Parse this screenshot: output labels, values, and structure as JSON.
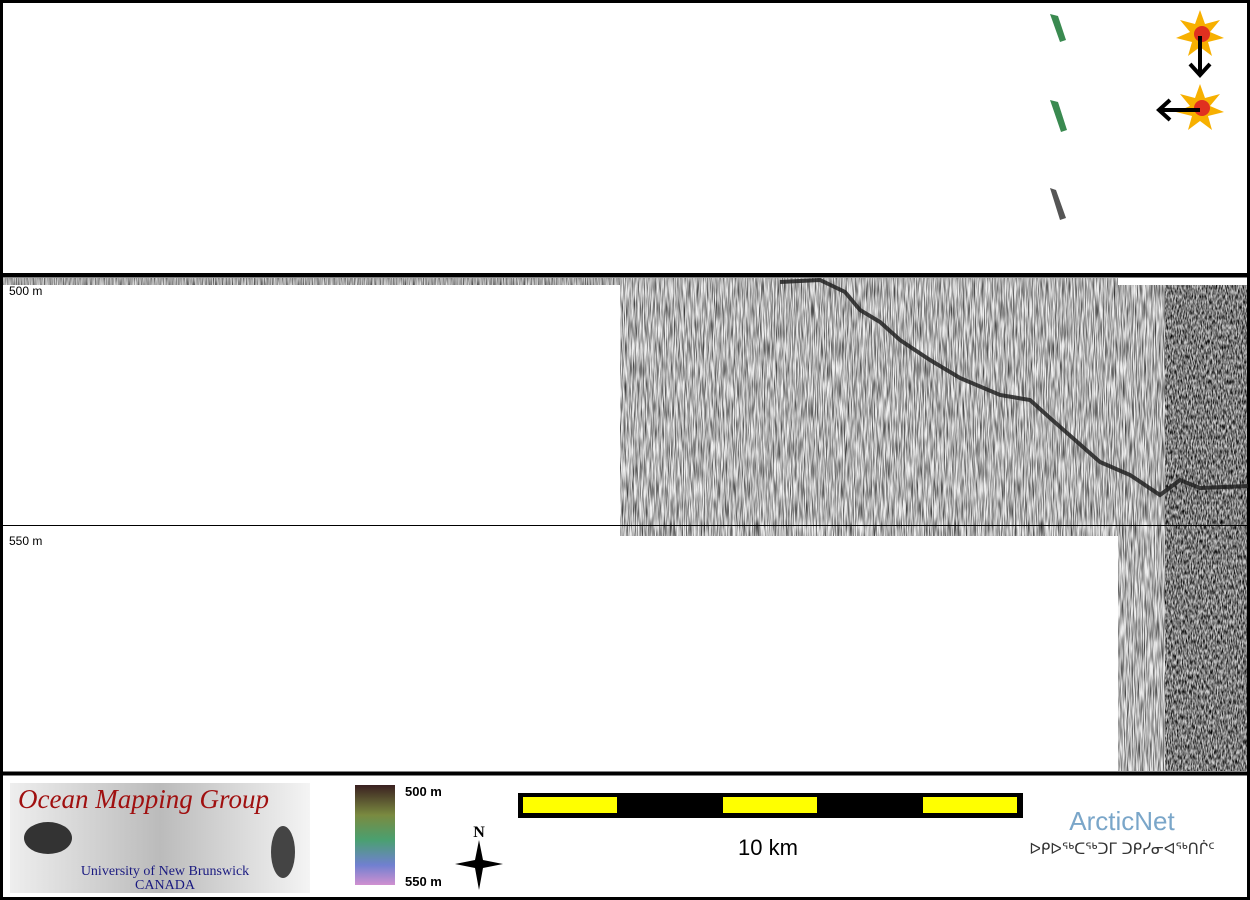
{
  "profile": {
    "depth_labels": [
      "500 m",
      "550 m"
    ]
  },
  "footer": {
    "logo": {
      "title": "Ocean Mapping Group",
      "line1": "University of New Brunswick",
      "line2": "CANADA"
    },
    "color_scale": {
      "top": "500 m",
      "bottom": "550 m"
    },
    "north": "N",
    "scale_bar": "10 km",
    "arcticnet": {
      "name": "ArcticNet",
      "syllabics": "ᐅᑭᐅᖅᑕᖅᑐᒥ ᑐᑭᓯᓂᐊᖅᑎᒌᑦ"
    }
  }
}
